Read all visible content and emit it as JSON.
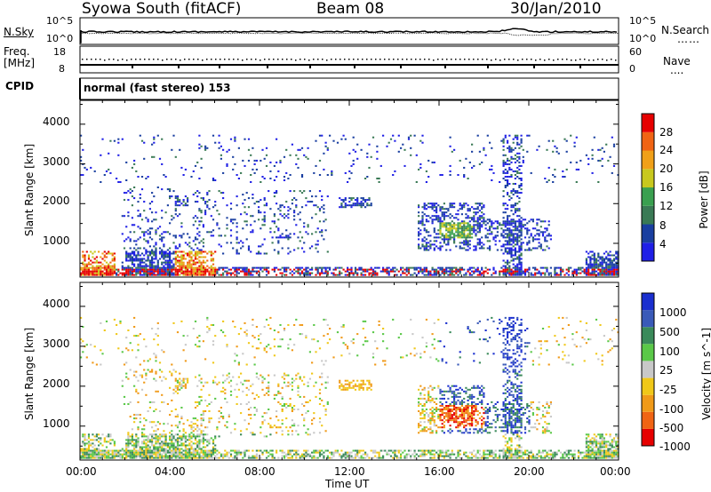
{
  "header": {
    "station": "Syowa South (fitACF)",
    "beam": "Beam 08",
    "date": "30/Jan/2010"
  },
  "noise_panel": {
    "left_label": "N.Sky",
    "right_label": "N.Search",
    "left_ticks": [
      "10^5",
      "10^0"
    ],
    "right_ticks": [
      "10^5",
      "10^0"
    ]
  },
  "freq_panel": {
    "left_label_1": "Freq.",
    "left_label_2": "[MHz]",
    "right_label": "Nave",
    "left_ticks": [
      "18",
      "8"
    ],
    "right_ticks": [
      "60",
      "0"
    ]
  },
  "cpid": {
    "label": "CPID",
    "value": "normal (fast stereo) 153"
  },
  "colors": {
    "power": [
      "#1f1fe6",
      "#1a3fa0",
      "#3a7a55",
      "#3aa050",
      "#c8c81e",
      "#f0a019",
      "#f06414",
      "#e60000"
    ],
    "velocity": [
      "#1a2fcf",
      "#3a5ab8",
      "#3a8a5a",
      "#5ac848",
      "#c8c8c8",
      "#f0c819",
      "#f09a19",
      "#f06414",
      "#e60000"
    ]
  },
  "chart_data": [
    {
      "type": "heatmap",
      "name": "power",
      "ylabel": "Slant Range [km]",
      "y_ticks": [
        "1000",
        "2000",
        "3000",
        "4000"
      ],
      "ylim": [
        150,
        4600
      ],
      "x_ticks": [
        "00:00",
        "04:00",
        "08:00",
        "12:00",
        "16:00",
        "20:00",
        "00:00"
      ],
      "xlim_hours": [
        0,
        24
      ],
      "colorbar_label": "Power [dB]",
      "colorbar_ticks": [
        "4",
        "8",
        "12",
        "16",
        "20",
        "24",
        "28"
      ]
    },
    {
      "type": "heatmap",
      "name": "velocity",
      "ylabel": "Slant Range [km]",
      "y_ticks": [
        "1000",
        "2000",
        "3000",
        "4000"
      ],
      "ylim": [
        150,
        4600
      ],
      "x_ticks": [
        "00:00",
        "04:00",
        "08:00",
        "12:00",
        "16:00",
        "20:00",
        "00:00"
      ],
      "xlim_hours": [
        0,
        24
      ],
      "xlabel": "Time UT",
      "colorbar_label": "Velocity [m s^-1]",
      "colorbar_ticks": [
        "1000",
        "500",
        "100",
        "25",
        "-25",
        "-100",
        "-500",
        "-1000"
      ]
    }
  ]
}
